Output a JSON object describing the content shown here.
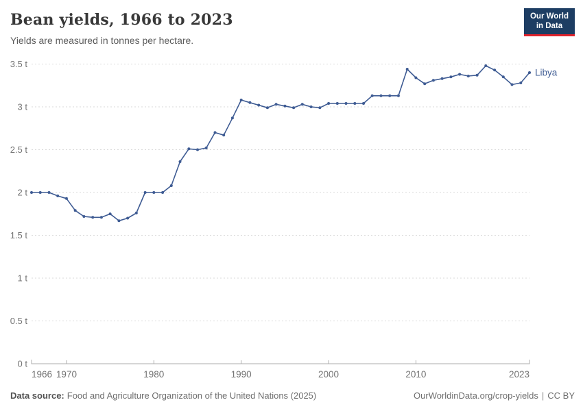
{
  "header": {
    "title": "Bean yields, 1966 to 2023",
    "subtitle": "Yields are measured in tonnes per hectare."
  },
  "logo": {
    "line1": "Our World",
    "line2": "in Data",
    "background_color": "#1d3d63",
    "bar_color": "#e0222b"
  },
  "chart_data": {
    "type": "line",
    "title": "Bean yields, 1966 to 2023",
    "subtitle": "Yields are measured in tonnes per hectare.",
    "unit": "tonnes per hectare",
    "xlim": [
      1966,
      2023
    ],
    "ylim": [
      0,
      3.5
    ],
    "grid": "horizontal-dashed",
    "legend_position": "label-at-line-end",
    "x_tick_values": [
      1966,
      1970,
      1980,
      1990,
      2000,
      2010,
      2023
    ],
    "x_tick_labels": [
      "1966",
      "1970",
      "1980",
      "1990",
      "2000",
      "2010",
      "2023"
    ],
    "y_tick_values": [
      0,
      0.5,
      1,
      1.5,
      2,
      2.5,
      3,
      3.5
    ],
    "y_tick_labels": [
      "0 t",
      "0.5 t",
      "1 t",
      "1.5 t",
      "2 t",
      "2.5 t",
      "3 t",
      "3.5 t"
    ],
    "series": [
      {
        "name": "Libya",
        "color": "#3e5b93",
        "x": [
          1966,
          1967,
          1968,
          1969,
          1970,
          1971,
          1972,
          1973,
          1974,
          1975,
          1976,
          1977,
          1978,
          1979,
          1980,
          1981,
          1982,
          1983,
          1984,
          1985,
          1986,
          1987,
          1988,
          1989,
          1990,
          1991,
          1992,
          1993,
          1994,
          1995,
          1996,
          1997,
          1998,
          1999,
          2000,
          2001,
          2002,
          2003,
          2004,
          2005,
          2006,
          2007,
          2008,
          2009,
          2010,
          2011,
          2012,
          2013,
          2014,
          2015,
          2016,
          2017,
          2018,
          2019,
          2020,
          2021,
          2022,
          2023
        ],
        "values": [
          2.0,
          2.0,
          2.0,
          1.96,
          1.93,
          1.79,
          1.72,
          1.71,
          1.71,
          1.75,
          1.67,
          1.7,
          1.76,
          2.0,
          2.0,
          2.0,
          2.08,
          2.36,
          2.51,
          2.5,
          2.52,
          2.7,
          2.67,
          2.87,
          3.08,
          3.05,
          3.02,
          2.99,
          3.03,
          3.01,
          2.99,
          3.03,
          3.0,
          2.99,
          3.04,
          3.04,
          3.04,
          3.04,
          3.04,
          3.13,
          3.13,
          3.13,
          3.13,
          3.44,
          3.34,
          3.27,
          3.31,
          3.33,
          3.35,
          3.38,
          3.36,
          3.37,
          3.48,
          3.43,
          3.35,
          3.26,
          3.28,
          3.4
        ]
      }
    ],
    "colors": {
      "gridline": "#dadada",
      "axis": "#adadad",
      "tick_label": "#737373"
    }
  },
  "footer": {
    "datasource_label": "Data source:",
    "datasource_text": "Food and Agriculture Organization of the United Nations (2025)",
    "link": "OurWorldinData.org/crop-yields",
    "separator": "|",
    "license": "CC BY"
  }
}
